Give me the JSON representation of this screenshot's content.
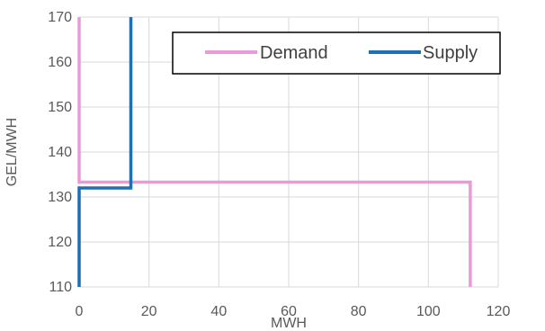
{
  "chart_data": {
    "type": "line",
    "title": "",
    "xlabel": "MWH",
    "ylabel": "GEL/MWH",
    "xlim": [
      0,
      120
    ],
    "ylim": [
      110,
      170
    ],
    "x_ticks": [
      0,
      20,
      40,
      60,
      80,
      100,
      120
    ],
    "y_ticks": [
      110,
      120,
      130,
      140,
      150,
      160,
      170
    ],
    "grid": true,
    "legend_position": "top-right",
    "series": [
      {
        "name": "Demand",
        "color": "#E89AD9",
        "step": true,
        "points": [
          [
            0,
            170
          ],
          [
            0,
            133.3
          ],
          [
            112,
            133.3
          ],
          [
            112,
            110
          ]
        ]
      },
      {
        "name": "Supply",
        "color": "#1F6FB2",
        "step": true,
        "points": [
          [
            0,
            110
          ],
          [
            0,
            132
          ],
          [
            14.8,
            132
          ],
          [
            14.8,
            170
          ]
        ]
      }
    ]
  }
}
